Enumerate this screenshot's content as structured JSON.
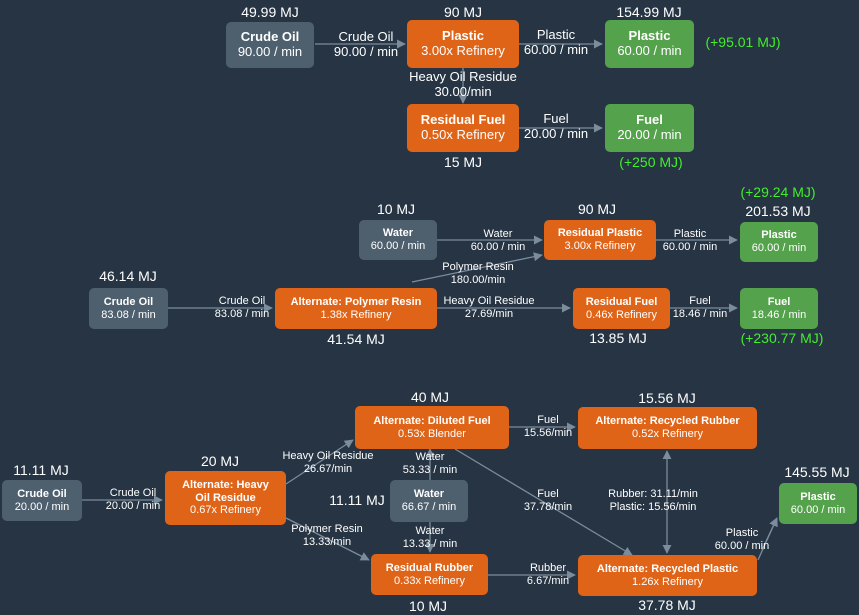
{
  "colors": {
    "background": "#263443",
    "resource": "#4e5f6e",
    "recipe": "#e06418",
    "output": "#55a24d",
    "edge": "#7b8c9c",
    "gain": "#43ee2c"
  },
  "d1": {
    "crude": {
      "title": "Crude Oil",
      "sub": "90.00 / min",
      "mj": "49.99 MJ"
    },
    "plastic": {
      "title": "Plastic",
      "sub": "3.00x Refinery",
      "mj": "90 MJ"
    },
    "plastic_out": {
      "title": "Plastic",
      "sub": "60.00 / min",
      "mj": "154.99 MJ",
      "gain": "(+95.01 MJ)"
    },
    "resfuel": {
      "title": "Residual Fuel",
      "sub": "0.50x Refinery",
      "mj": "15 MJ"
    },
    "fuel_out": {
      "title": "Fuel",
      "sub": "20.00 / min",
      "gain": "(+250 MJ)"
    },
    "e_crude": {
      "name": "Crude Oil",
      "rate": "90.00 / min"
    },
    "e_plastic": {
      "name": "Plastic",
      "rate": "60.00 / min"
    },
    "e_heavy": {
      "name": "Heavy Oil Residue",
      "rate": "30.00/min"
    },
    "e_fuel": {
      "name": "Fuel",
      "rate": "20.00 / min"
    }
  },
  "d2": {
    "water": {
      "title": "Water",
      "sub": "60.00 / min",
      "mj": "10 MJ"
    },
    "crude": {
      "title": "Crude Oil",
      "sub": "83.08 / min",
      "mj": "46.14 MJ"
    },
    "resplastic": {
      "title": "Residual Plastic",
      "sub": "3.00x Refinery",
      "mj": "90 MJ"
    },
    "polyresin": {
      "title": "Alternate: Polymer Resin",
      "sub": "1.38x Refinery",
      "mj": "41.54 MJ"
    },
    "resfuel": {
      "title": "Residual Fuel",
      "sub": "0.46x Refinery",
      "mj": "13.85 MJ"
    },
    "plastic_out": {
      "title": "Plastic",
      "sub": "60.00 / min",
      "mj": "201.53 MJ",
      "gain": "(+29.24 MJ)"
    },
    "fuel_out": {
      "title": "Fuel",
      "sub": "18.46 / min",
      "gain": "(+230.77 MJ)"
    },
    "e_water": {
      "name": "Water",
      "rate": "60.00 / min"
    },
    "e_plastic": {
      "name": "Plastic",
      "rate": "60.00 / min"
    },
    "e_polymer": {
      "name": "Polymer Resin",
      "rate": "180.00/min"
    },
    "e_crude": {
      "name": "Crude Oil",
      "rate": "83.08 / min"
    },
    "e_heavy": {
      "name": "Heavy Oil Residue",
      "rate": "27.69/min"
    },
    "e_fuel": {
      "name": "Fuel",
      "rate": "18.46 / min"
    }
  },
  "d3": {
    "crude": {
      "title": "Crude Oil",
      "sub": "20.00 / min",
      "mj": "11.11 MJ"
    },
    "heavy": {
      "title": "Alternate: Heavy Oil Residue",
      "sub": "0.67x Refinery",
      "mj": "20 MJ"
    },
    "diluted": {
      "title": "Alternate: Diluted Fuel",
      "sub": "0.53x Blender",
      "mj": "40 MJ"
    },
    "water": {
      "title": "Water",
      "sub": "66.67 / min",
      "mj": "11.11 MJ"
    },
    "resrubber": {
      "title": "Residual Rubber",
      "sub": "0.33x Refinery",
      "mj": "10 MJ"
    },
    "recrubber": {
      "title": "Alternate: Recycled Rubber",
      "sub": "0.52x Refinery",
      "mj": "15.56 MJ"
    },
    "recplastic": {
      "title": "Alternate: Recycled Plastic",
      "sub": "1.26x Refinery",
      "mj": "37.78 MJ"
    },
    "plastic_out": {
      "title": "Plastic",
      "sub": "60.00 / min",
      "mj": "145.55 MJ"
    },
    "e_crude": {
      "name": "Crude Oil",
      "rate": "20.00 / min"
    },
    "e_heavy": {
      "name": "Heavy Oil Residue",
      "rate": "26.67/min"
    },
    "e_water1": {
      "name": "Water",
      "rate": "53.33 / min"
    },
    "e_polymer": {
      "name": "Polymer Resin",
      "rate": "13.33/min"
    },
    "e_water2": {
      "name": "Water",
      "rate": "13.33 / min"
    },
    "e_fuel1": {
      "name": "Fuel",
      "rate": "15.56/min"
    },
    "e_fuel2": {
      "name": "Fuel",
      "rate": "37.78/min"
    },
    "e_rubber": {
      "name": "Rubber",
      "rate": "6.67/min"
    },
    "e_loop": {
      "line1": "Rubber: 31.11/min",
      "line2": "Plastic: 15.56/min"
    },
    "e_plastic": {
      "name": "Plastic",
      "rate": "60.00 / min"
    }
  }
}
